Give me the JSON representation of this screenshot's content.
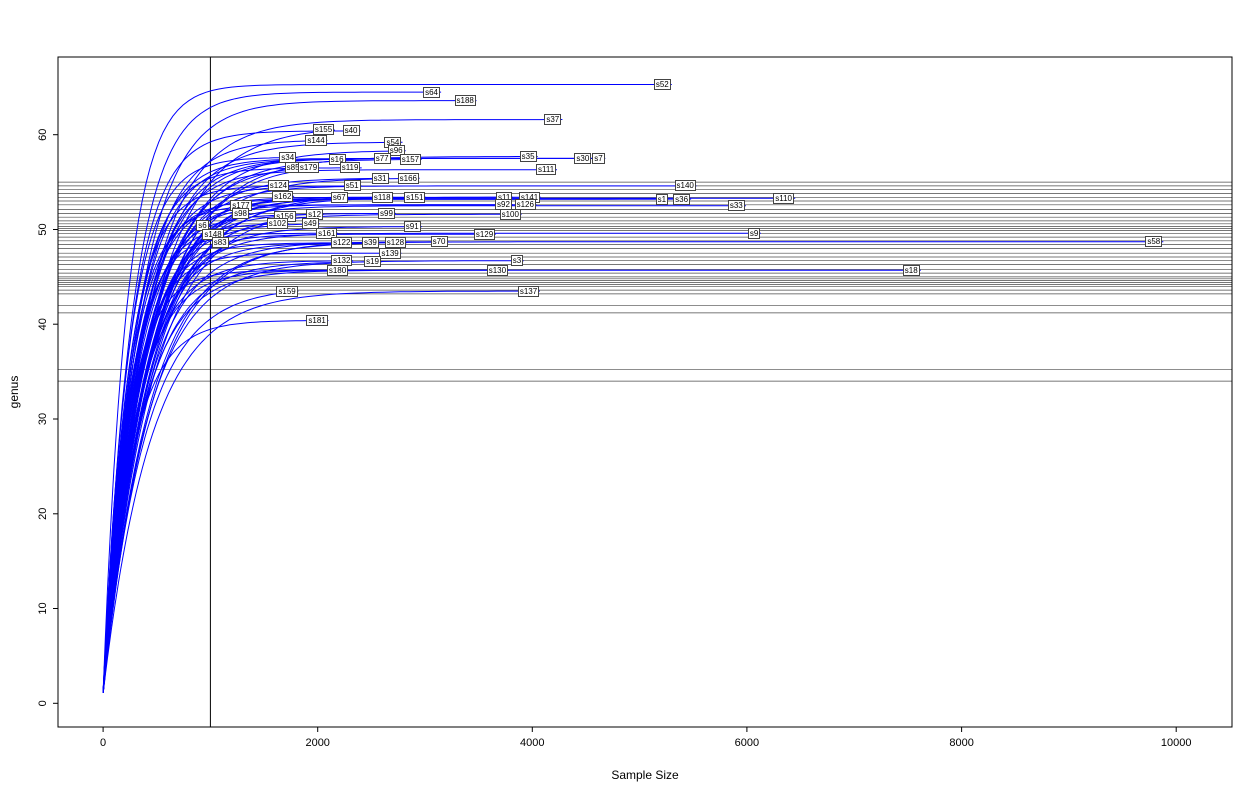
{
  "page": {
    "background": "#ffffff"
  },
  "chart_data": {
    "type": "line",
    "title": "",
    "xlabel": "Sample Size",
    "ylabel": "genus",
    "xlim": [
      -420,
      10520
    ],
    "ylim": [
      -2.5,
      68.2
    ],
    "x_ticks": [
      0,
      2000,
      4000,
      6000,
      8000,
      10000
    ],
    "y_ticks": [
      0,
      10,
      20,
      30,
      40,
      50,
      60
    ],
    "grid": false,
    "legend": "none",
    "curve_color": "#0000ff",
    "axis_color": "#000000",
    "reference_vline_x": 1000,
    "reference_hlines_y": [
      55.0,
      54.6,
      54.2,
      53.8,
      53.4,
      53.0,
      52.6,
      52.1,
      51.7,
      51.3,
      50.9,
      50.6,
      50.3,
      50.1,
      49.9,
      49.6,
      49.2,
      48.8,
      48.4,
      48.0,
      47.5,
      47.1,
      46.7,
      46.3,
      45.8,
      45.4,
      45.0,
      44.8,
      44.6,
      44.4,
      44.2,
      44.0,
      43.6,
      43.2,
      42.0,
      41.2,
      35.2,
      34.0
    ],
    "series": [
      {
        "name": "s52",
        "x_end": 5300,
        "y_end": 65.3
      },
      {
        "name": "s64",
        "x_end": 3150,
        "y_end": 64.5
      },
      {
        "name": "s188",
        "x_end": 3480,
        "y_end": 63.6
      },
      {
        "name": "s37",
        "x_end": 4280,
        "y_end": 61.6
      },
      {
        "name": "s155",
        "x_end": 2160,
        "y_end": 60.5
      },
      {
        "name": "s40",
        "x_end": 2400,
        "y_end": 60.4
      },
      {
        "name": "s144",
        "x_end": 2090,
        "y_end": 59.4
      },
      {
        "name": "s54",
        "x_end": 2790,
        "y_end": 59.2
      },
      {
        "name": "s96",
        "x_end": 2820,
        "y_end": 58.3
      },
      {
        "name": "s34",
        "x_end": 1810,
        "y_end": 57.6
      },
      {
        "name": "s16",
        "x_end": 2270,
        "y_end": 57.4
      },
      {
        "name": "s77",
        "x_end": 2690,
        "y_end": 57.5
      },
      {
        "name": "s157",
        "x_end": 2970,
        "y_end": 57.4
      },
      {
        "name": "s35",
        "x_end": 4050,
        "y_end": 57.7
      },
      {
        "name": "s30",
        "x_end": 4560,
        "y_end": 57.5
      },
      {
        "name": "s7",
        "x_end": 4680,
        "y_end": 57.5
      },
      {
        "name": "s85",
        "x_end": 1860,
        "y_end": 56.5
      },
      {
        "name": "s179",
        "x_end": 2020,
        "y_end": 56.5
      },
      {
        "name": "s119",
        "x_end": 2410,
        "y_end": 56.5
      },
      {
        "name": "s111",
        "x_end": 4230,
        "y_end": 56.3
      },
      {
        "name": "s31",
        "x_end": 2670,
        "y_end": 55.4
      },
      {
        "name": "s166",
        "x_end": 2950,
        "y_end": 55.4
      },
      {
        "name": "s124",
        "x_end": 1740,
        "y_end": 54.6
      },
      {
        "name": "s51",
        "x_end": 2410,
        "y_end": 54.6
      },
      {
        "name": "s140",
        "x_end": 5530,
        "y_end": 54.6
      },
      {
        "name": "s162",
        "x_end": 1780,
        "y_end": 53.5
      },
      {
        "name": "s67",
        "x_end": 2290,
        "y_end": 53.4
      },
      {
        "name": "s118",
        "x_end": 2710,
        "y_end": 53.4
      },
      {
        "name": "s151",
        "x_end": 3010,
        "y_end": 53.4
      },
      {
        "name": "s11",
        "x_end": 3820,
        "y_end": 53.4
      },
      {
        "name": "s141",
        "x_end": 4080,
        "y_end": 53.4
      },
      {
        "name": "s1",
        "x_end": 5270,
        "y_end": 53.2
      },
      {
        "name": "s36",
        "x_end": 5480,
        "y_end": 53.2
      },
      {
        "name": "s110",
        "x_end": 6450,
        "y_end": 53.3
      },
      {
        "name": "s177",
        "x_end": 1390,
        "y_end": 52.5
      },
      {
        "name": "s92",
        "x_end": 3820,
        "y_end": 52.6
      },
      {
        "name": "s126",
        "x_end": 4040,
        "y_end": 52.6
      },
      {
        "name": "s33",
        "x_end": 5990,
        "y_end": 52.5
      },
      {
        "name": "s98",
        "x_end": 1370,
        "y_end": 51.7
      },
      {
        "name": "s156",
        "x_end": 1800,
        "y_end": 51.4
      },
      {
        "name": "s12",
        "x_end": 2060,
        "y_end": 51.6
      },
      {
        "name": "s99",
        "x_end": 2730,
        "y_end": 51.7
      },
      {
        "name": "s100",
        "x_end": 3900,
        "y_end": 51.6
      },
      {
        "name": "s6",
        "x_end": 990,
        "y_end": 50.4
      },
      {
        "name": "s102",
        "x_end": 1730,
        "y_end": 50.6
      },
      {
        "name": "s49",
        "x_end": 2020,
        "y_end": 50.6
      },
      {
        "name": "s91",
        "x_end": 2970,
        "y_end": 50.3
      },
      {
        "name": "s148",
        "x_end": 1130,
        "y_end": 49.5
      },
      {
        "name": "s161",
        "x_end": 2190,
        "y_end": 49.6
      },
      {
        "name": "s129",
        "x_end": 3660,
        "y_end": 49.5
      },
      {
        "name": "s9",
        "x_end": 6130,
        "y_end": 49.6
      },
      {
        "name": "s83",
        "x_end": 1180,
        "y_end": 48.6
      },
      {
        "name": "s122",
        "x_end": 2330,
        "y_end": 48.6
      },
      {
        "name": "s39",
        "x_end": 2580,
        "y_end": 48.6
      },
      {
        "name": "s128",
        "x_end": 2830,
        "y_end": 48.6
      },
      {
        "name": "s70",
        "x_end": 3220,
        "y_end": 48.7
      },
      {
        "name": "s58",
        "x_end": 9880,
        "y_end": 48.7
      },
      {
        "name": "s139",
        "x_end": 2780,
        "y_end": 47.5
      },
      {
        "name": "s132",
        "x_end": 2330,
        "y_end": 46.7
      },
      {
        "name": "s19",
        "x_end": 2600,
        "y_end": 46.6
      },
      {
        "name": "s3",
        "x_end": 3920,
        "y_end": 46.7
      },
      {
        "name": "s180",
        "x_end": 2290,
        "y_end": 45.7
      },
      {
        "name": "s130",
        "x_end": 3780,
        "y_end": 45.7
      },
      {
        "name": "s18",
        "x_end": 7620,
        "y_end": 45.7
      },
      {
        "name": "s159",
        "x_end": 1820,
        "y_end": 43.5
      },
      {
        "name": "s137",
        "x_end": 4070,
        "y_end": 43.5
      },
      {
        "name": "s181",
        "x_end": 2100,
        "y_end": 40.4
      }
    ]
  }
}
